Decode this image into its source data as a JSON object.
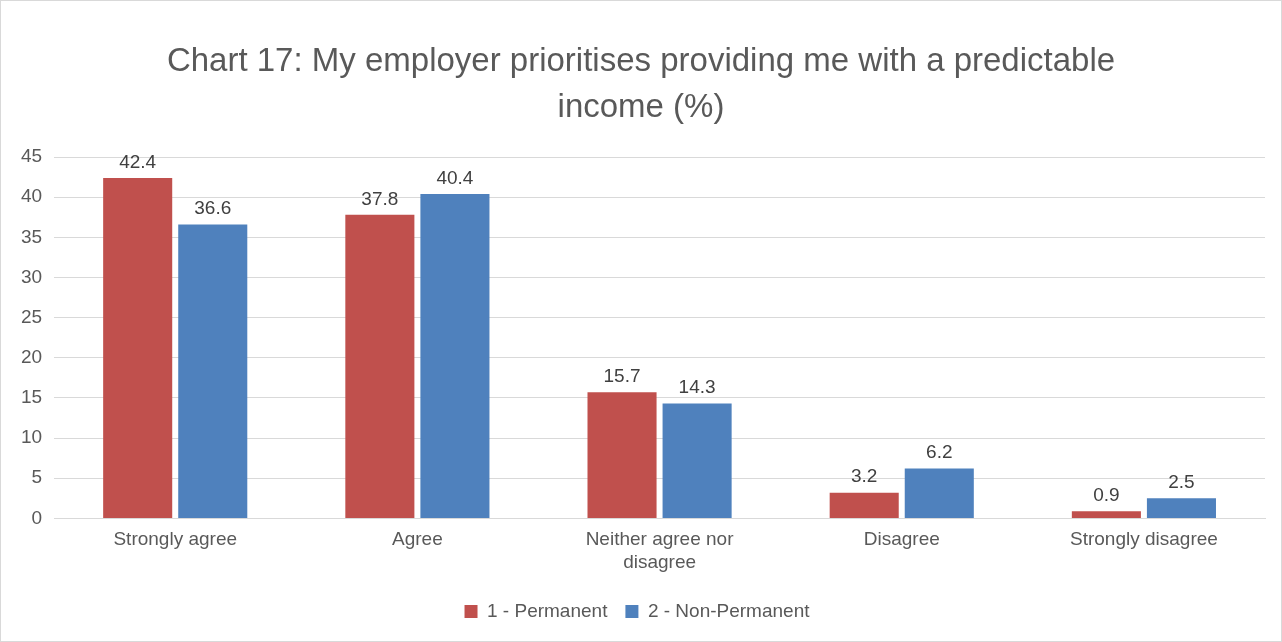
{
  "chart_data": {
    "type": "bar",
    "title": "Chart 17: My employer prioritises providing me with a predictable income (%)",
    "categories": [
      "Strongly agree",
      "Agree",
      "Neither agree nor disagree",
      "Disagree",
      "Strongly disagree"
    ],
    "series": [
      {
        "name": "1 - Permanent",
        "color": "#c0504d",
        "values": [
          42.4,
          37.8,
          15.7,
          3.2,
          0.9
        ]
      },
      {
        "name": "2 - Non-Permanent",
        "color": "#4f81bd",
        "values": [
          36.6,
          40.4,
          14.3,
          6.2,
          2.5
        ]
      }
    ],
    "ylim": [
      0,
      45
    ],
    "yticks": [
      0,
      5,
      10,
      15,
      20,
      25,
      30,
      35,
      40,
      45
    ],
    "grid": "y",
    "legend": "bottom",
    "data_labels": true
  }
}
